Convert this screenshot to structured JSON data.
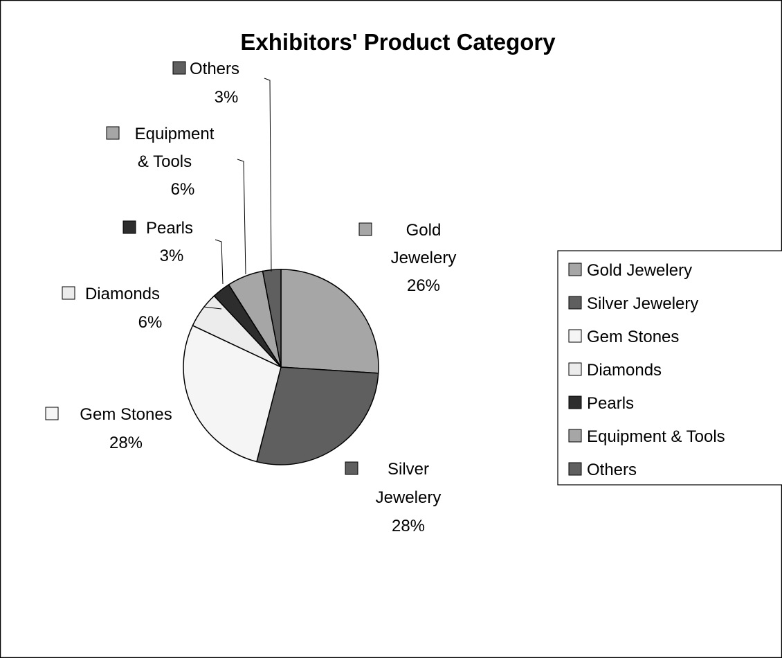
{
  "chart_data": {
    "type": "pie",
    "title": "Exhibitors' Product Category",
    "slices": [
      {
        "name": "Gold Jewelery",
        "value": 26,
        "percent_label": "26%",
        "label_lines": [
          "Gold",
          "Jewelery"
        ],
        "color": "#a6a6a6"
      },
      {
        "name": "Silver Jewelery",
        "value": 28,
        "percent_label": "28%",
        "label_lines": [
          "Silver",
          "Jewelery"
        ],
        "color": "#5f5f5f"
      },
      {
        "name": "Gem Stones",
        "value": 28,
        "percent_label": "28%",
        "label_lines": [
          "Gem Stones"
        ],
        "color": "#f5f5f5"
      },
      {
        "name": "Diamonds",
        "value": 6,
        "percent_label": "6%",
        "label_lines": [
          "Diamonds"
        ],
        "color": "#ececec"
      },
      {
        "name": "Pearls",
        "value": 3,
        "percent_label": "3%",
        "label_lines": [
          "Pearls"
        ],
        "color": "#2d2d2d"
      },
      {
        "name": "Equipment & Tools",
        "value": 6,
        "percent_label": "6%",
        "label_lines": [
          "Equipment",
          "& Tools"
        ],
        "color": "#a6a6a6"
      },
      {
        "name": "Others",
        "value": 3,
        "percent_label": "3%",
        "label_lines": [
          "Others"
        ],
        "color": "#5f5f5f"
      }
    ],
    "legend": {
      "placement": "right",
      "entries": [
        "Gold Jewelery",
        "Silver Jewelery",
        "Gem Stones",
        "Diamonds",
        "Pearls",
        "Equipment & Tools",
        "Others"
      ]
    }
  }
}
